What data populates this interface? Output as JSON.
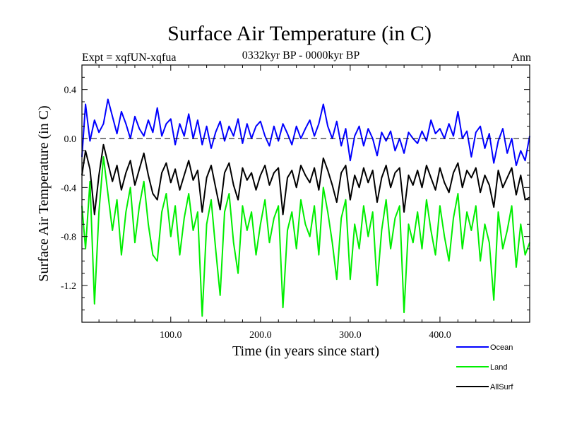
{
  "chart_data": {
    "type": "line",
    "title": "Surface Air Temperature (in C)",
    "experiment_label": "Expt = xqfUN-xqfua",
    "period_label": "0332kyr BP - 0000kyr BP",
    "season_label": "Ann",
    "xlabel": "Time (in years since start)",
    "ylabel": "Surface Air Temperature (in C)",
    "xlim": [
      1,
      500
    ],
    "ylim": [
      -1.5,
      0.6
    ],
    "xticks": [
      100,
      200,
      300,
      400
    ],
    "xtick_labels": [
      "100.0",
      "200.0",
      "300.0",
      "400.0"
    ],
    "yticks": [
      0.4,
      0.0,
      -0.4,
      -0.8,
      -1.2
    ],
    "ytick_labels": [
      "0.4",
      "0.0",
      "-0.4",
      "-0.8",
      "-1.2"
    ],
    "reference_line": 0.0,
    "series": [
      {
        "name": "Ocean",
        "color": "#0000ff",
        "x": [
          1,
          5,
          10,
          15,
          20,
          25,
          30,
          35,
          40,
          45,
          50,
          55,
          60,
          65,
          70,
          75,
          80,
          85,
          90,
          95,
          100,
          105,
          110,
          115,
          120,
          125,
          130,
          135,
          140,
          145,
          150,
          155,
          160,
          165,
          170,
          175,
          180,
          185,
          190,
          195,
          200,
          205,
          210,
          215,
          220,
          225,
          230,
          235,
          240,
          245,
          250,
          255,
          260,
          265,
          270,
          275,
          280,
          285,
          290,
          295,
          300,
          305,
          310,
          315,
          320,
          325,
          330,
          335,
          340,
          345,
          350,
          355,
          360,
          365,
          370,
          375,
          380,
          385,
          390,
          395,
          400,
          405,
          410,
          415,
          420,
          425,
          430,
          435,
          440,
          445,
          450,
          455,
          460,
          465,
          470,
          475,
          480,
          485,
          490,
          495,
          500
        ],
        "values": [
          -0.15,
          0.28,
          -0.02,
          0.15,
          0.05,
          0.12,
          0.32,
          0.18,
          0.04,
          0.22,
          0.12,
          0.0,
          0.18,
          0.08,
          0.02,
          0.15,
          0.05,
          0.25,
          0.02,
          0.12,
          0.16,
          -0.05,
          0.12,
          0.02,
          0.2,
          0.0,
          0.15,
          -0.05,
          0.1,
          -0.08,
          0.05,
          0.14,
          -0.02,
          0.1,
          0.02,
          0.16,
          -0.04,
          0.12,
          0.0,
          0.1,
          0.14,
          0.02,
          -0.06,
          0.1,
          -0.02,
          0.12,
          0.04,
          -0.05,
          0.1,
          0.0,
          0.08,
          0.15,
          0.02,
          0.12,
          0.28,
          0.1,
          0.0,
          0.14,
          -0.06,
          0.08,
          -0.18,
          0.02,
          0.1,
          -0.06,
          0.08,
          0.0,
          -0.14,
          0.05,
          -0.02,
          0.06,
          -0.1,
          0.0,
          -0.12,
          0.05,
          0.0,
          -0.04,
          0.06,
          -0.02,
          0.15,
          0.04,
          0.08,
          0.0,
          0.12,
          0.02,
          0.22,
          0.0,
          0.06,
          -0.15,
          0.05,
          0.1,
          -0.08,
          0.04,
          -0.2,
          -0.02,
          0.08,
          -0.12,
          0.0,
          -0.22,
          -0.1,
          -0.18,
          0.02
        ]
      },
      {
        "name": "Land",
        "color": "#00ee00",
        "x": [
          1,
          5,
          10,
          15,
          20,
          25,
          30,
          35,
          40,
          45,
          50,
          55,
          60,
          65,
          70,
          75,
          80,
          85,
          90,
          95,
          100,
          105,
          110,
          115,
          120,
          125,
          130,
          135,
          140,
          145,
          150,
          155,
          160,
          165,
          170,
          175,
          180,
          185,
          190,
          195,
          200,
          205,
          210,
          215,
          220,
          225,
          230,
          235,
          240,
          245,
          250,
          255,
          260,
          265,
          270,
          275,
          280,
          285,
          290,
          295,
          300,
          305,
          310,
          315,
          320,
          325,
          330,
          335,
          340,
          345,
          350,
          355,
          360,
          365,
          370,
          375,
          380,
          385,
          390,
          395,
          400,
          405,
          410,
          415,
          420,
          425,
          430,
          435,
          440,
          445,
          450,
          455,
          460,
          465,
          470,
          475,
          480,
          485,
          490,
          495,
          500
        ],
        "values": [
          -0.55,
          -0.9,
          -0.35,
          -1.35,
          -0.6,
          -0.15,
          -0.45,
          -0.75,
          -0.5,
          -0.95,
          -0.6,
          -0.4,
          -0.85,
          -0.55,
          -0.35,
          -0.7,
          -0.95,
          -1.0,
          -0.6,
          -0.45,
          -0.8,
          -0.55,
          -0.95,
          -0.65,
          -0.45,
          -0.75,
          -0.6,
          -1.45,
          -0.7,
          -0.5,
          -0.9,
          -1.28,
          -0.6,
          -0.45,
          -0.85,
          -1.1,
          -0.55,
          -0.75,
          -0.6,
          -0.95,
          -0.7,
          -0.5,
          -0.85,
          -0.65,
          -0.55,
          -1.38,
          -0.75,
          -0.6,
          -0.9,
          -0.5,
          -0.7,
          -0.8,
          -0.55,
          -0.95,
          -0.4,
          -0.6,
          -0.85,
          -1.15,
          -0.65,
          -0.5,
          -1.15,
          -0.7,
          -0.9,
          -0.55,
          -0.8,
          -0.6,
          -1.2,
          -0.75,
          -0.5,
          -0.9,
          -0.65,
          -0.55,
          -1.42,
          -0.7,
          -0.85,
          -0.6,
          -0.9,
          -0.5,
          -0.75,
          -0.95,
          -0.55,
          -0.8,
          -1.0,
          -0.65,
          -0.45,
          -0.9,
          -0.6,
          -0.75,
          -0.55,
          -1.0,
          -0.7,
          -0.85,
          -1.32,
          -0.6,
          -0.9,
          -0.75,
          -0.55,
          -1.05,
          -0.7,
          -0.95,
          -0.85
        ]
      },
      {
        "name": "AllSurf",
        "color": "#000000",
        "x": [
          1,
          5,
          10,
          15,
          20,
          25,
          30,
          35,
          40,
          45,
          50,
          55,
          60,
          65,
          70,
          75,
          80,
          85,
          90,
          95,
          100,
          105,
          110,
          115,
          120,
          125,
          130,
          135,
          140,
          145,
          150,
          155,
          160,
          165,
          170,
          175,
          180,
          185,
          190,
          195,
          200,
          205,
          210,
          215,
          220,
          225,
          230,
          235,
          240,
          245,
          250,
          255,
          260,
          265,
          270,
          275,
          280,
          285,
          290,
          295,
          300,
          305,
          310,
          315,
          320,
          325,
          330,
          335,
          340,
          345,
          350,
          355,
          360,
          365,
          370,
          375,
          380,
          385,
          390,
          395,
          400,
          405,
          410,
          415,
          420,
          425,
          430,
          435,
          440,
          445,
          450,
          455,
          460,
          465,
          470,
          475,
          480,
          485,
          490,
          495,
          500
        ],
        "values": [
          -0.3,
          -0.1,
          -0.25,
          -0.62,
          -0.3,
          -0.05,
          -0.2,
          -0.35,
          -0.22,
          -0.42,
          -0.28,
          -0.18,
          -0.38,
          -0.25,
          -0.12,
          -0.3,
          -0.45,
          -0.5,
          -0.28,
          -0.2,
          -0.36,
          -0.25,
          -0.42,
          -0.3,
          -0.18,
          -0.34,
          -0.26,
          -0.6,
          -0.32,
          -0.22,
          -0.4,
          -0.58,
          -0.28,
          -0.2,
          -0.38,
          -0.5,
          -0.24,
          -0.34,
          -0.28,
          -0.42,
          -0.3,
          -0.22,
          -0.38,
          -0.28,
          -0.24,
          -0.62,
          -0.32,
          -0.26,
          -0.4,
          -0.22,
          -0.3,
          -0.36,
          -0.24,
          -0.42,
          -0.16,
          -0.26,
          -0.38,
          -0.52,
          -0.28,
          -0.22,
          -0.5,
          -0.3,
          -0.4,
          -0.24,
          -0.36,
          -0.26,
          -0.52,
          -0.32,
          -0.22,
          -0.4,
          -0.28,
          -0.24,
          -0.6,
          -0.3,
          -0.38,
          -0.26,
          -0.4,
          -0.22,
          -0.32,
          -0.42,
          -0.24,
          -0.36,
          -0.44,
          -0.28,
          -0.2,
          -0.4,
          -0.26,
          -0.32,
          -0.24,
          -0.44,
          -0.3,
          -0.38,
          -0.56,
          -0.26,
          -0.4,
          -0.32,
          -0.24,
          -0.46,
          -0.3,
          -0.5,
          -0.48
        ]
      }
    ]
  }
}
